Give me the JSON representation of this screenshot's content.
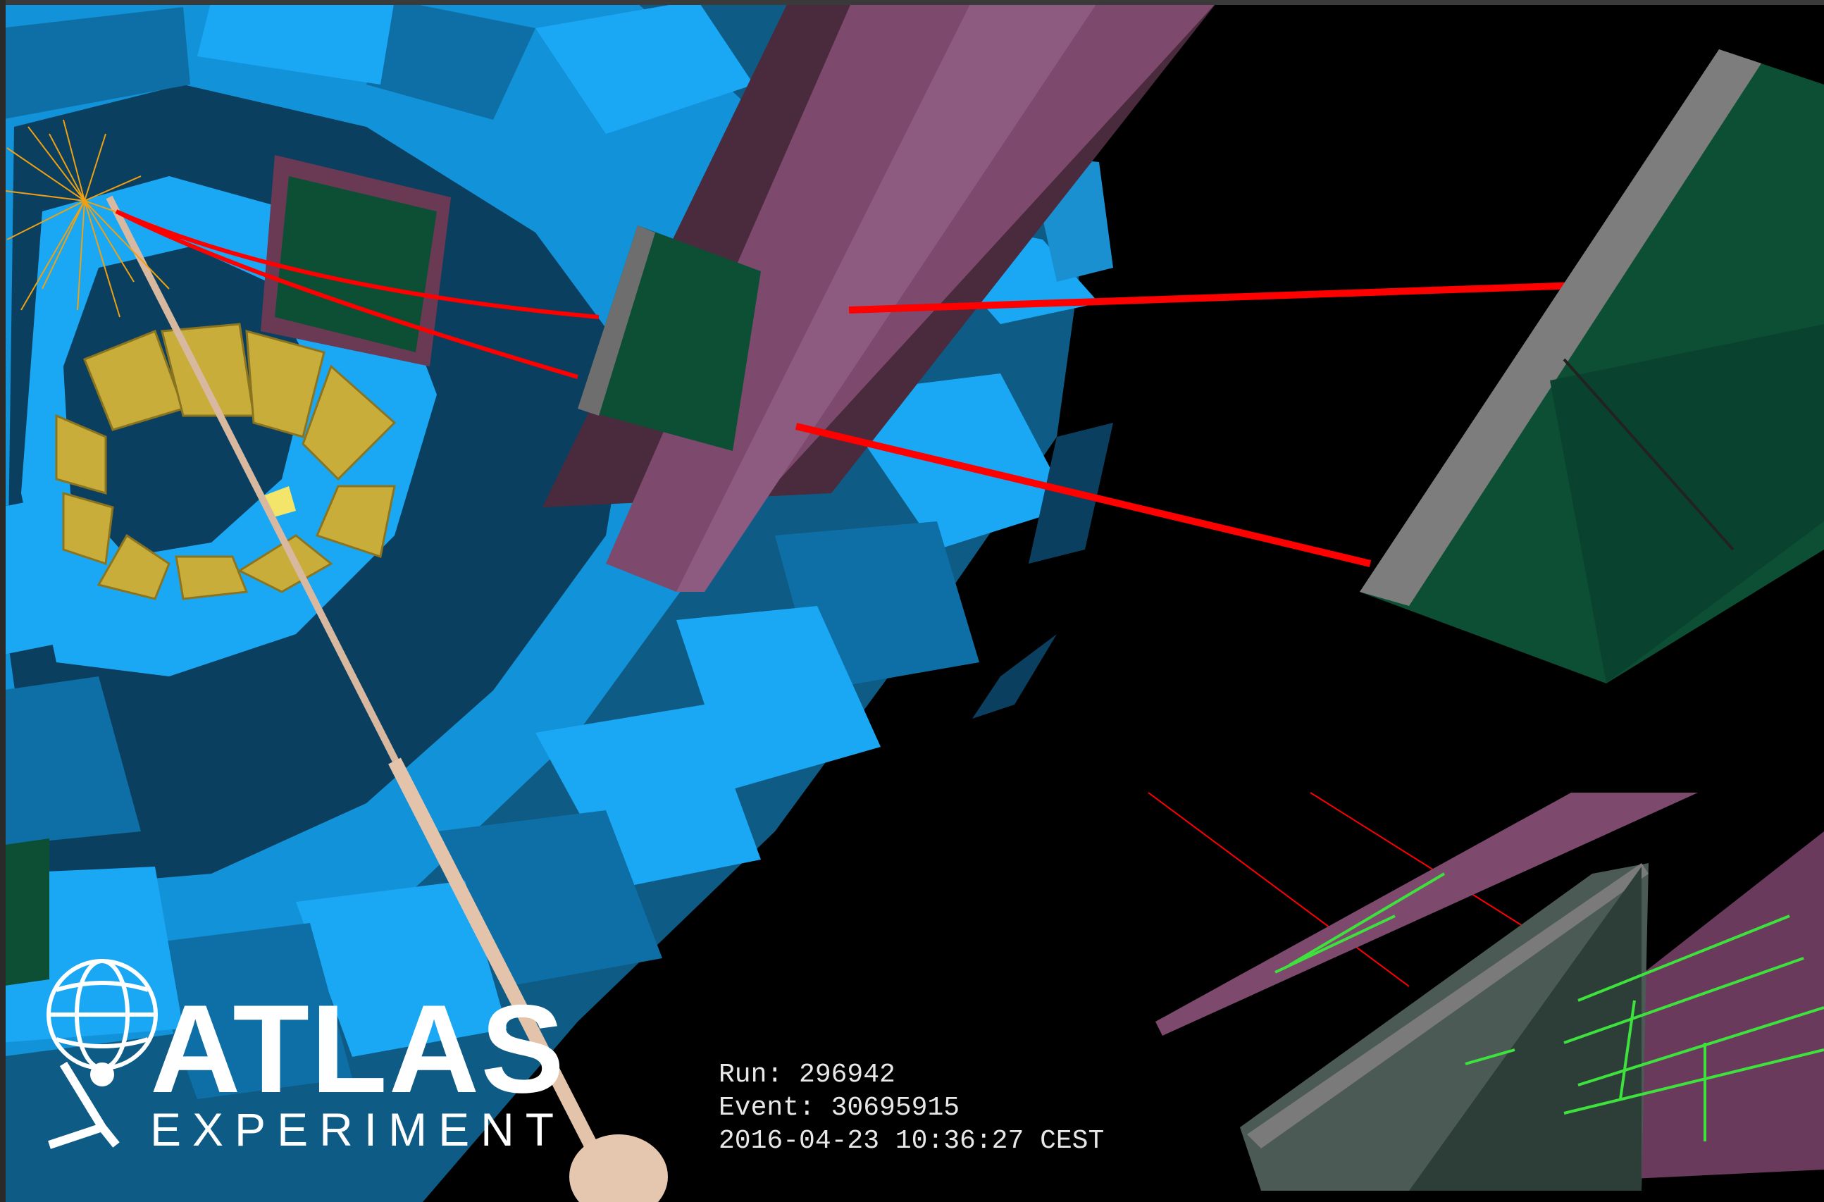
{
  "logo": {
    "title": "ATLAS",
    "subtitle": "EXPERIMENT",
    "emblem_icon": "atlas-globe-figure-icon"
  },
  "event": {
    "run_label": "Run: 296942",
    "event_label": "Event: 30695915",
    "datetime_label": "2016-04-23 10:36:27 CEST"
  },
  "colors": {
    "background": "#000000",
    "calorimeter_blue": "#12a7f2",
    "muon_track_red": "#ff0000",
    "chamber_green": "#0d4f35",
    "magnet_purple": "#7d4a6e",
    "endcap_yellow": "#c9ad3a",
    "hit_green": "#3de23d"
  }
}
